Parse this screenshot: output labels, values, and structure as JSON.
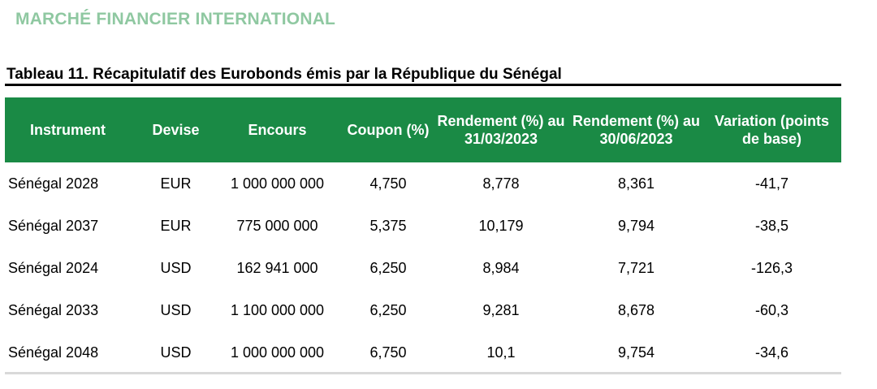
{
  "section": {
    "title": "MARCHÉ FINANCIER INTERNATIONAL",
    "accent_color": "#8fc8a1"
  },
  "table": {
    "caption": "Tableau 11. Récapitulatif des Eurobonds émis par la République du Sénégal",
    "header_color": "#1a8a45",
    "headers": [
      "Instrument",
      "Devise",
      "Encours",
      "Coupon (%)",
      "Rendement (%) au 31/03/2023",
      "Rendement (%) au 30/06/2023",
      "Variation (points de base)"
    ],
    "rows": [
      [
        "Sénégal 2028",
        "EUR",
        "1 000 000 000",
        "4,750",
        "8,778",
        "8,361",
        "-41,7"
      ],
      [
        "Sénégal 2037",
        "EUR",
        "775 000 000",
        "5,375",
        "10,179",
        "9,794",
        "-38,5"
      ],
      [
        "Sénégal 2024",
        "USD",
        "162 941 000",
        "6,250",
        "8,984",
        "7,721",
        "-126,3"
      ],
      [
        "Sénégal 2033",
        "USD",
        "1 100 000 000",
        "6,250",
        "9,281",
        "8,678",
        "-60,3"
      ],
      [
        "Sénégal 2048",
        "USD",
        "1 000 000 000",
        "6,750",
        "10,1",
        "9,754",
        "-34,6"
      ]
    ]
  }
}
